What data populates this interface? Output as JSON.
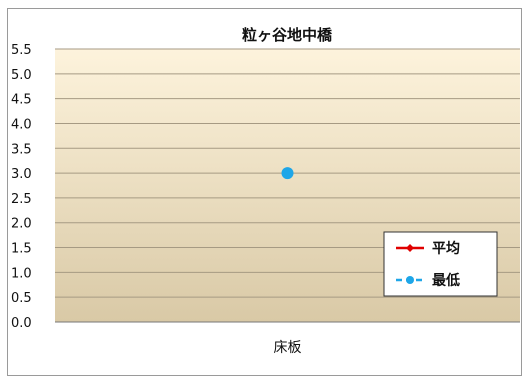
{
  "chart_data": {
    "type": "line",
    "title": "粒ヶ谷地中橋",
    "categories": [
      "床板"
    ],
    "ylim": [
      0.0,
      5.5
    ],
    "yticks": [
      "5.5",
      "5.0",
      "4.5",
      "4.0",
      "3.5",
      "3.0",
      "2.5",
      "2.0",
      "1.5",
      "1.0",
      "0.5",
      "0.0"
    ],
    "grid": true,
    "legend_position": "bottom-right",
    "series": [
      {
        "name": "平均",
        "values": [
          null
        ],
        "color": "#e00000",
        "marker": "diamond",
        "line": "solid"
      },
      {
        "name": "最低",
        "values": [
          3.0
        ],
        "color": "#1ea6e8",
        "marker": "circle",
        "line": "dashed"
      }
    ]
  }
}
